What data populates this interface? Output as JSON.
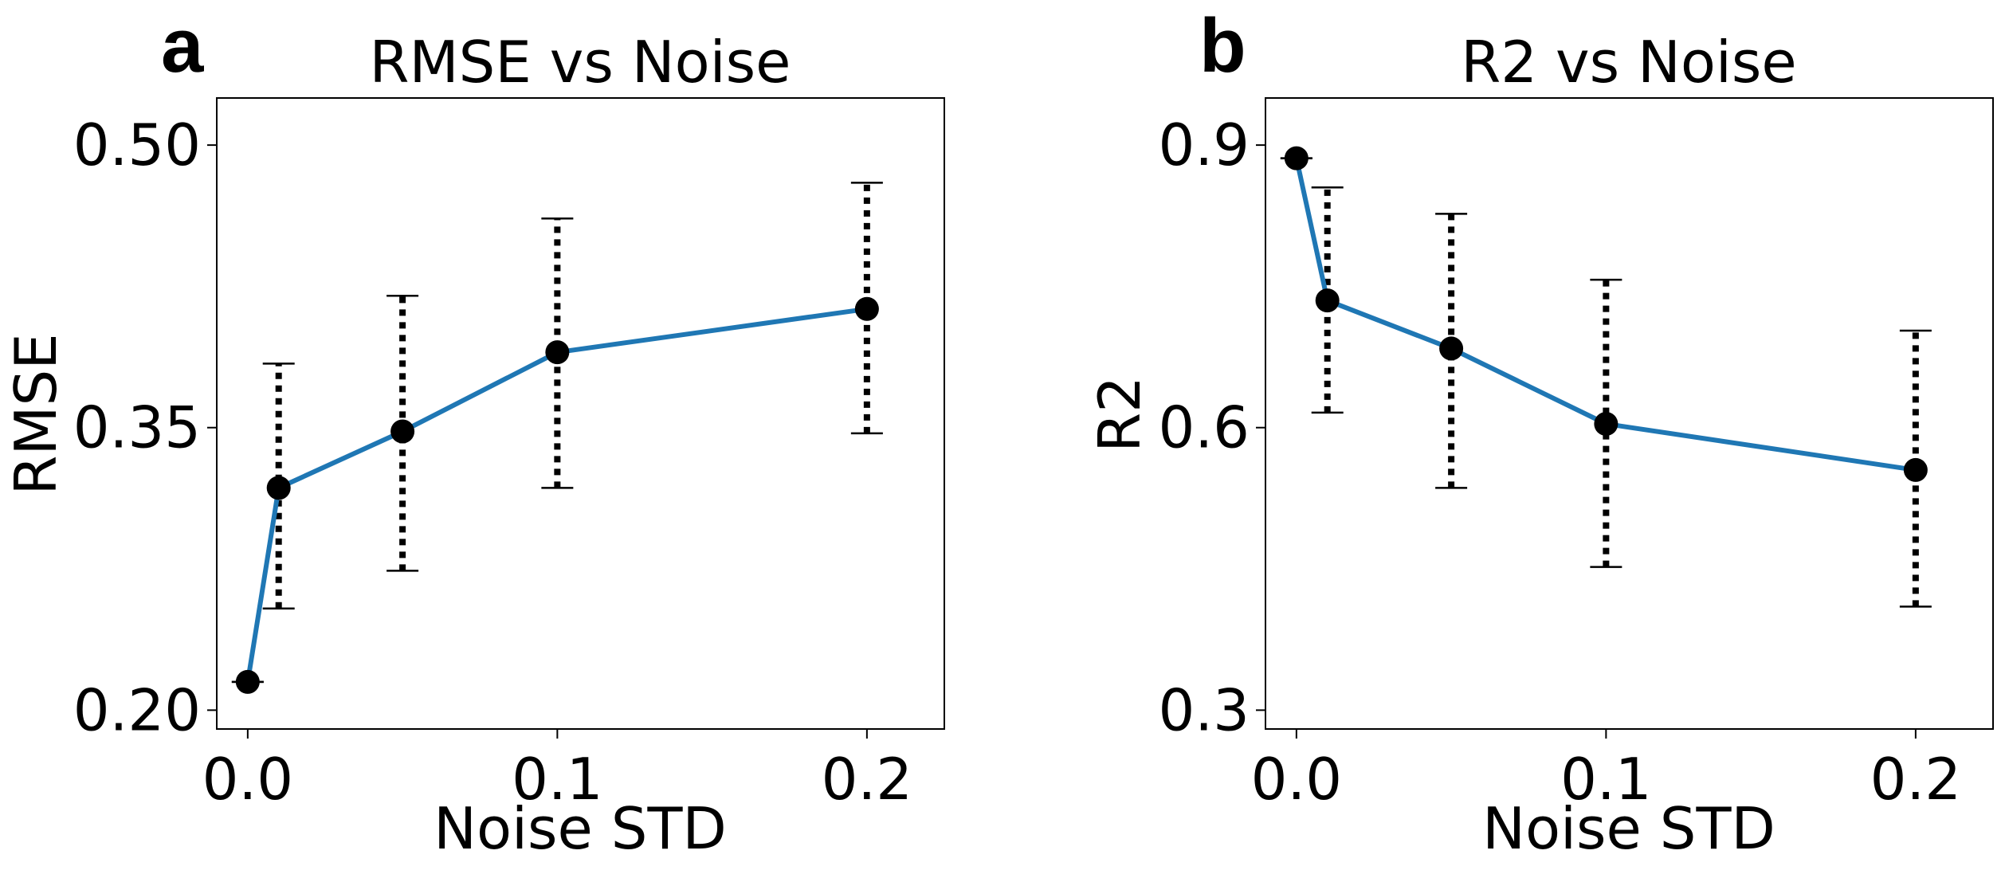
{
  "chart_data": [
    {
      "panel_label": "a",
      "type": "line",
      "title": "RMSE vs Noise",
      "xlabel": "Noise STD",
      "ylabel": "RMSE",
      "x": [
        0.0,
        0.01,
        0.05,
        0.1,
        0.2
      ],
      "series": [
        {
          "values": [
            0.215,
            0.318,
            0.348,
            0.39,
            0.413
          ],
          "err_lower": [
            0.215,
            0.254,
            0.274,
            0.318,
            0.347
          ],
          "err_upper": [
            0.215,
            0.384,
            0.42,
            0.461,
            0.48
          ],
          "color": "#1f77b4",
          "marker_color": "#000000"
        }
      ],
      "xlim": [
        -0.01,
        0.225
      ],
      "ylim": [
        0.19,
        0.525
      ],
      "xticks": [
        0.0,
        0.1,
        0.2
      ],
      "xtick_labels": [
        "0.0",
        "0.1",
        "0.2"
      ],
      "yticks": [
        0.2,
        0.35,
        0.5
      ],
      "ytick_labels": [
        "0.20",
        "0.35",
        "0.50"
      ],
      "grid": false,
      "legend": "none",
      "errorbar_style": "dotted"
    },
    {
      "panel_label": "b",
      "type": "line",
      "title": "R2 vs Noise",
      "xlabel": "Noise STD",
      "ylabel": "R2",
      "x": [
        0.0,
        0.01,
        0.05,
        0.1,
        0.2
      ],
      "series": [
        {
          "values": [
            0.886,
            0.735,
            0.684,
            0.604,
            0.555
          ],
          "err_lower": [
            0.886,
            0.616,
            0.536,
            0.452,
            0.41
          ],
          "err_upper": [
            0.886,
            0.855,
            0.827,
            0.757,
            0.703
          ],
          "color": "#1f77b4",
          "marker_color": "#000000"
        }
      ],
      "xlim": [
        -0.01,
        0.225
      ],
      "ylim": [
        0.28,
        0.95
      ],
      "xticks": [
        0.0,
        0.1,
        0.2
      ],
      "xtick_labels": [
        "0.0",
        "0.1",
        "0.2"
      ],
      "yticks": [
        0.3,
        0.6,
        0.9
      ],
      "ytick_labels": [
        "0.3",
        "0.6",
        "0.9"
      ],
      "grid": false,
      "legend": "none",
      "errorbar_style": "dotted"
    }
  ]
}
